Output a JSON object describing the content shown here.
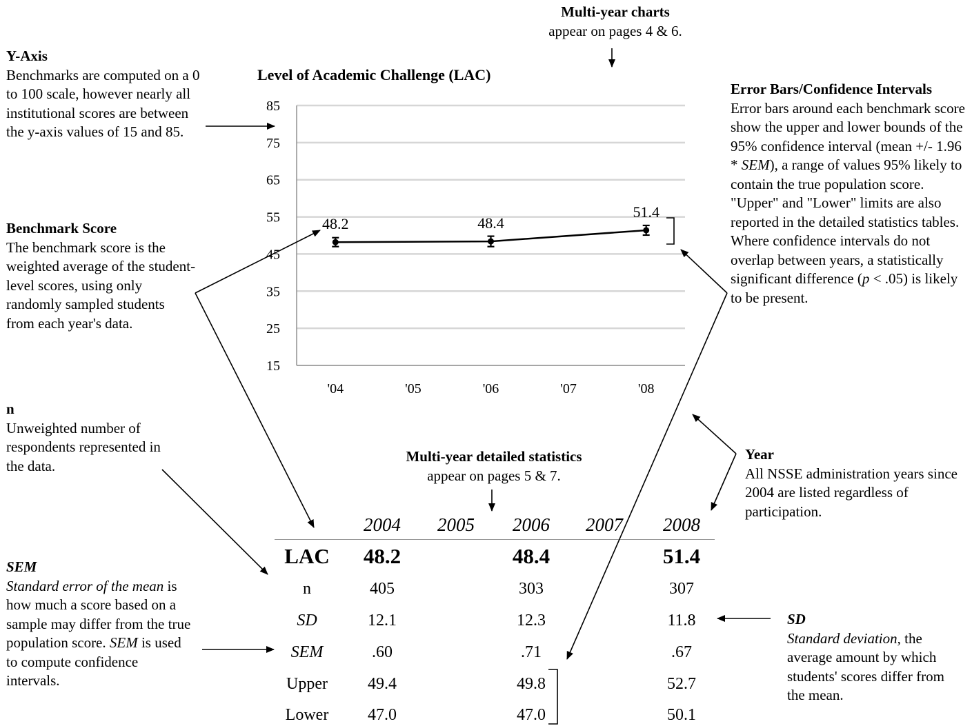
{
  "annotations": {
    "yaxis": {
      "title": "Y-Axis",
      "text": "Benchmarks are computed on a 0 to 100 scale, however nearly all institutional scores are between the y-axis values of 15 and 85."
    },
    "benchmark": {
      "title": "Benchmark Score",
      "text": "The benchmark score is the weighted average of the student-level scores, using only randomly sampled students from each year's data."
    },
    "n": {
      "title": "n",
      "text": "Unweighted number of respondents represented in the data."
    },
    "sem": {
      "title": "SEM",
      "text_a": "Standard error of the mean",
      "text_b": " is how much a score based on a sample may differ from the true population score. ",
      "text_c": "SEM",
      "text_d": " is used to compute confidence intervals."
    },
    "multiyear_charts": {
      "title": "Multi-year charts",
      "text": "appear on pages 4 & 6."
    },
    "error_bars": {
      "title": "Error Bars/Confidence Intervals",
      "text_a": "Error bars around each benchmark score show the upper and lower bounds of the 95% confidence interval (mean +/- 1.96 * ",
      "text_b": "SEM",
      "text_c": "), a range of values 95% likely to contain the true population score. \"Upper\" and \"Lower\" limits are also reported in the detailed statistics tables. Where confidence intervals do not overlap between years, a statistically significant difference (",
      "text_d": "p",
      "text_e": " < .05) is likely to be present."
    },
    "year": {
      "title": "Year",
      "text": "All NSSE administration years since 2004 are listed regardless of participation."
    },
    "multiyear_stats": {
      "title": "Multi-year detailed statistics",
      "text": "appear on pages 5 & 7."
    },
    "sd": {
      "title": "SD",
      "text_a": "Standard deviation",
      "text_b": ", the average amount by which students' scores differ from the mean."
    }
  },
  "chart_data": {
    "type": "line",
    "title": "Level of Academic Challenge (LAC)",
    "categories": [
      "'04",
      "'05",
      "'06",
      "'07",
      "'08"
    ],
    "ylim": [
      15,
      85
    ],
    "yticks": [
      15,
      25,
      35,
      45,
      55,
      65,
      75,
      85
    ],
    "grid": true,
    "legend": "none",
    "points": [
      {
        "x": "'04",
        "y": 48.2,
        "label": "48.2",
        "upper": 49.4,
        "lower": 47.0
      },
      {
        "x": "'06",
        "y": 48.4,
        "label": "48.4",
        "upper": 49.8,
        "lower": 47.0
      },
      {
        "x": "'08",
        "y": 51.4,
        "label": "51.4",
        "upper": 52.7,
        "lower": 50.1
      }
    ]
  },
  "stats_table": {
    "years": [
      "2004",
      "2005",
      "2006",
      "2007",
      "2008"
    ],
    "rows": [
      {
        "label": "LAC",
        "values": [
          "48.2",
          "",
          "48.4",
          "",
          "51.4"
        ]
      },
      {
        "label": "n",
        "values": [
          "405",
          "",
          "303",
          "",
          "307"
        ]
      },
      {
        "label": "SD",
        "values": [
          "12.1",
          "",
          "12.3",
          "",
          "11.8"
        ]
      },
      {
        "label": "SEM",
        "values": [
          ".60",
          "",
          ".71",
          "",
          ".67"
        ]
      },
      {
        "label": "Upper",
        "values": [
          "49.4",
          "",
          "49.8",
          "",
          "52.7"
        ]
      },
      {
        "label": "Lower",
        "values": [
          "47.0",
          "",
          "47.0",
          "",
          "50.1"
        ]
      }
    ]
  }
}
